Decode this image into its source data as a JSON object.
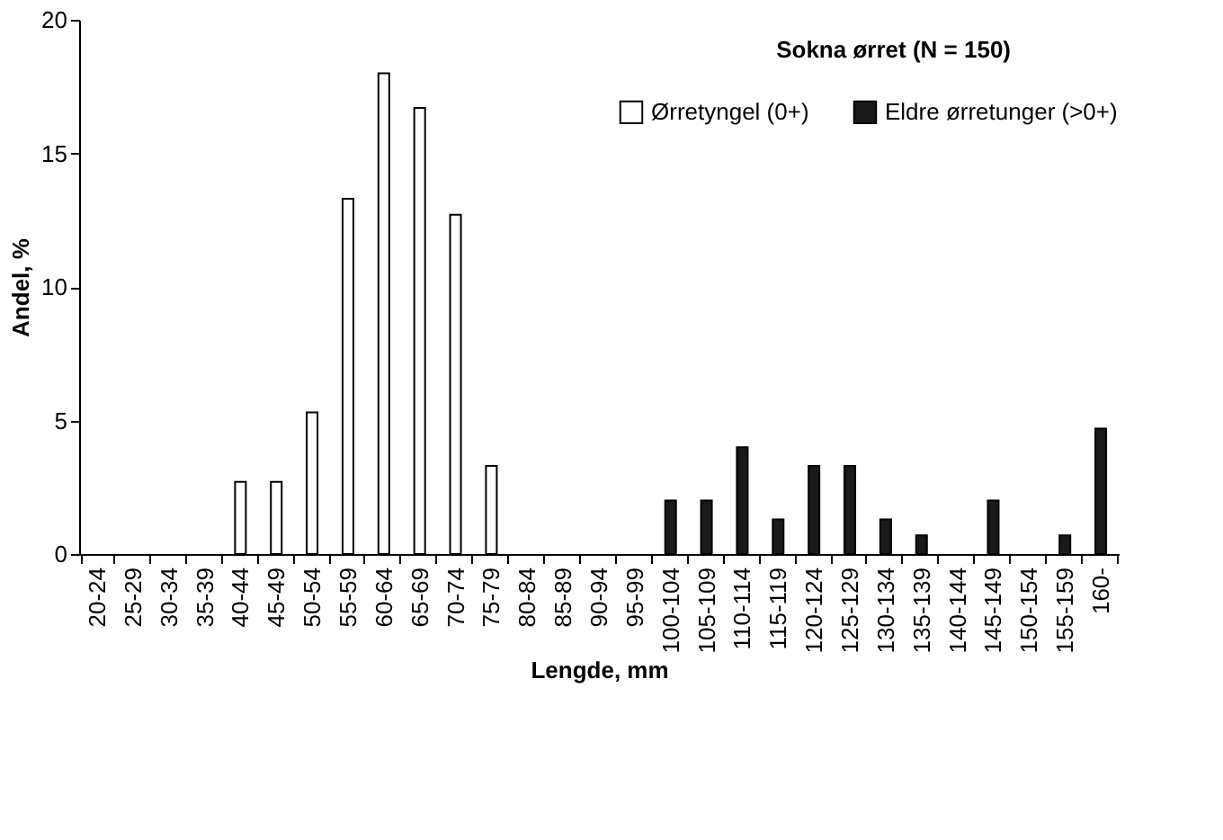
{
  "chart_data": {
    "type": "bar",
    "title": "Sokna ørret (N = 150)",
    "xlabel": "Lengde, mm",
    "ylabel": "Andel, %",
    "categories": [
      "20-24",
      "25-29",
      "30-34",
      "35-39",
      "40-44",
      "45-49",
      "50-54",
      "55-59",
      "60-64",
      "65-69",
      "70-74",
      "75-79",
      "80-84",
      "85-89",
      "90-94",
      "95-99",
      "100-104",
      "105-109",
      "110-114",
      "115-119",
      "120-124",
      "125-129",
      "130-134",
      "135-139",
      "140-144",
      "145-149",
      "150-154",
      "155-159",
      "160-"
    ],
    "series": [
      {
        "name": "Ørretyngel (0+)",
        "color": "#ffffff",
        "values": [
          null,
          null,
          null,
          null,
          2.7,
          2.7,
          5.3,
          13.3,
          18.0,
          16.7,
          12.7,
          3.3,
          null,
          null,
          null,
          null,
          null,
          null,
          null,
          null,
          null,
          null,
          null,
          null,
          null,
          null,
          null,
          null,
          null
        ]
      },
      {
        "name": "Eldre ørretunger (>0+)",
        "color": "#1a1a1a",
        "values": [
          null,
          null,
          null,
          null,
          null,
          null,
          null,
          null,
          null,
          null,
          null,
          null,
          null,
          null,
          null,
          null,
          2.0,
          2.0,
          4.0,
          1.3,
          3.3,
          3.3,
          1.3,
          0.7,
          null,
          2.0,
          null,
          0.7,
          4.7
        ]
      }
    ],
    "ylim": [
      0,
      20
    ],
    "yticks": [
      0,
      5,
      10,
      15,
      20
    ],
    "grid": false,
    "legend": "top right"
  }
}
